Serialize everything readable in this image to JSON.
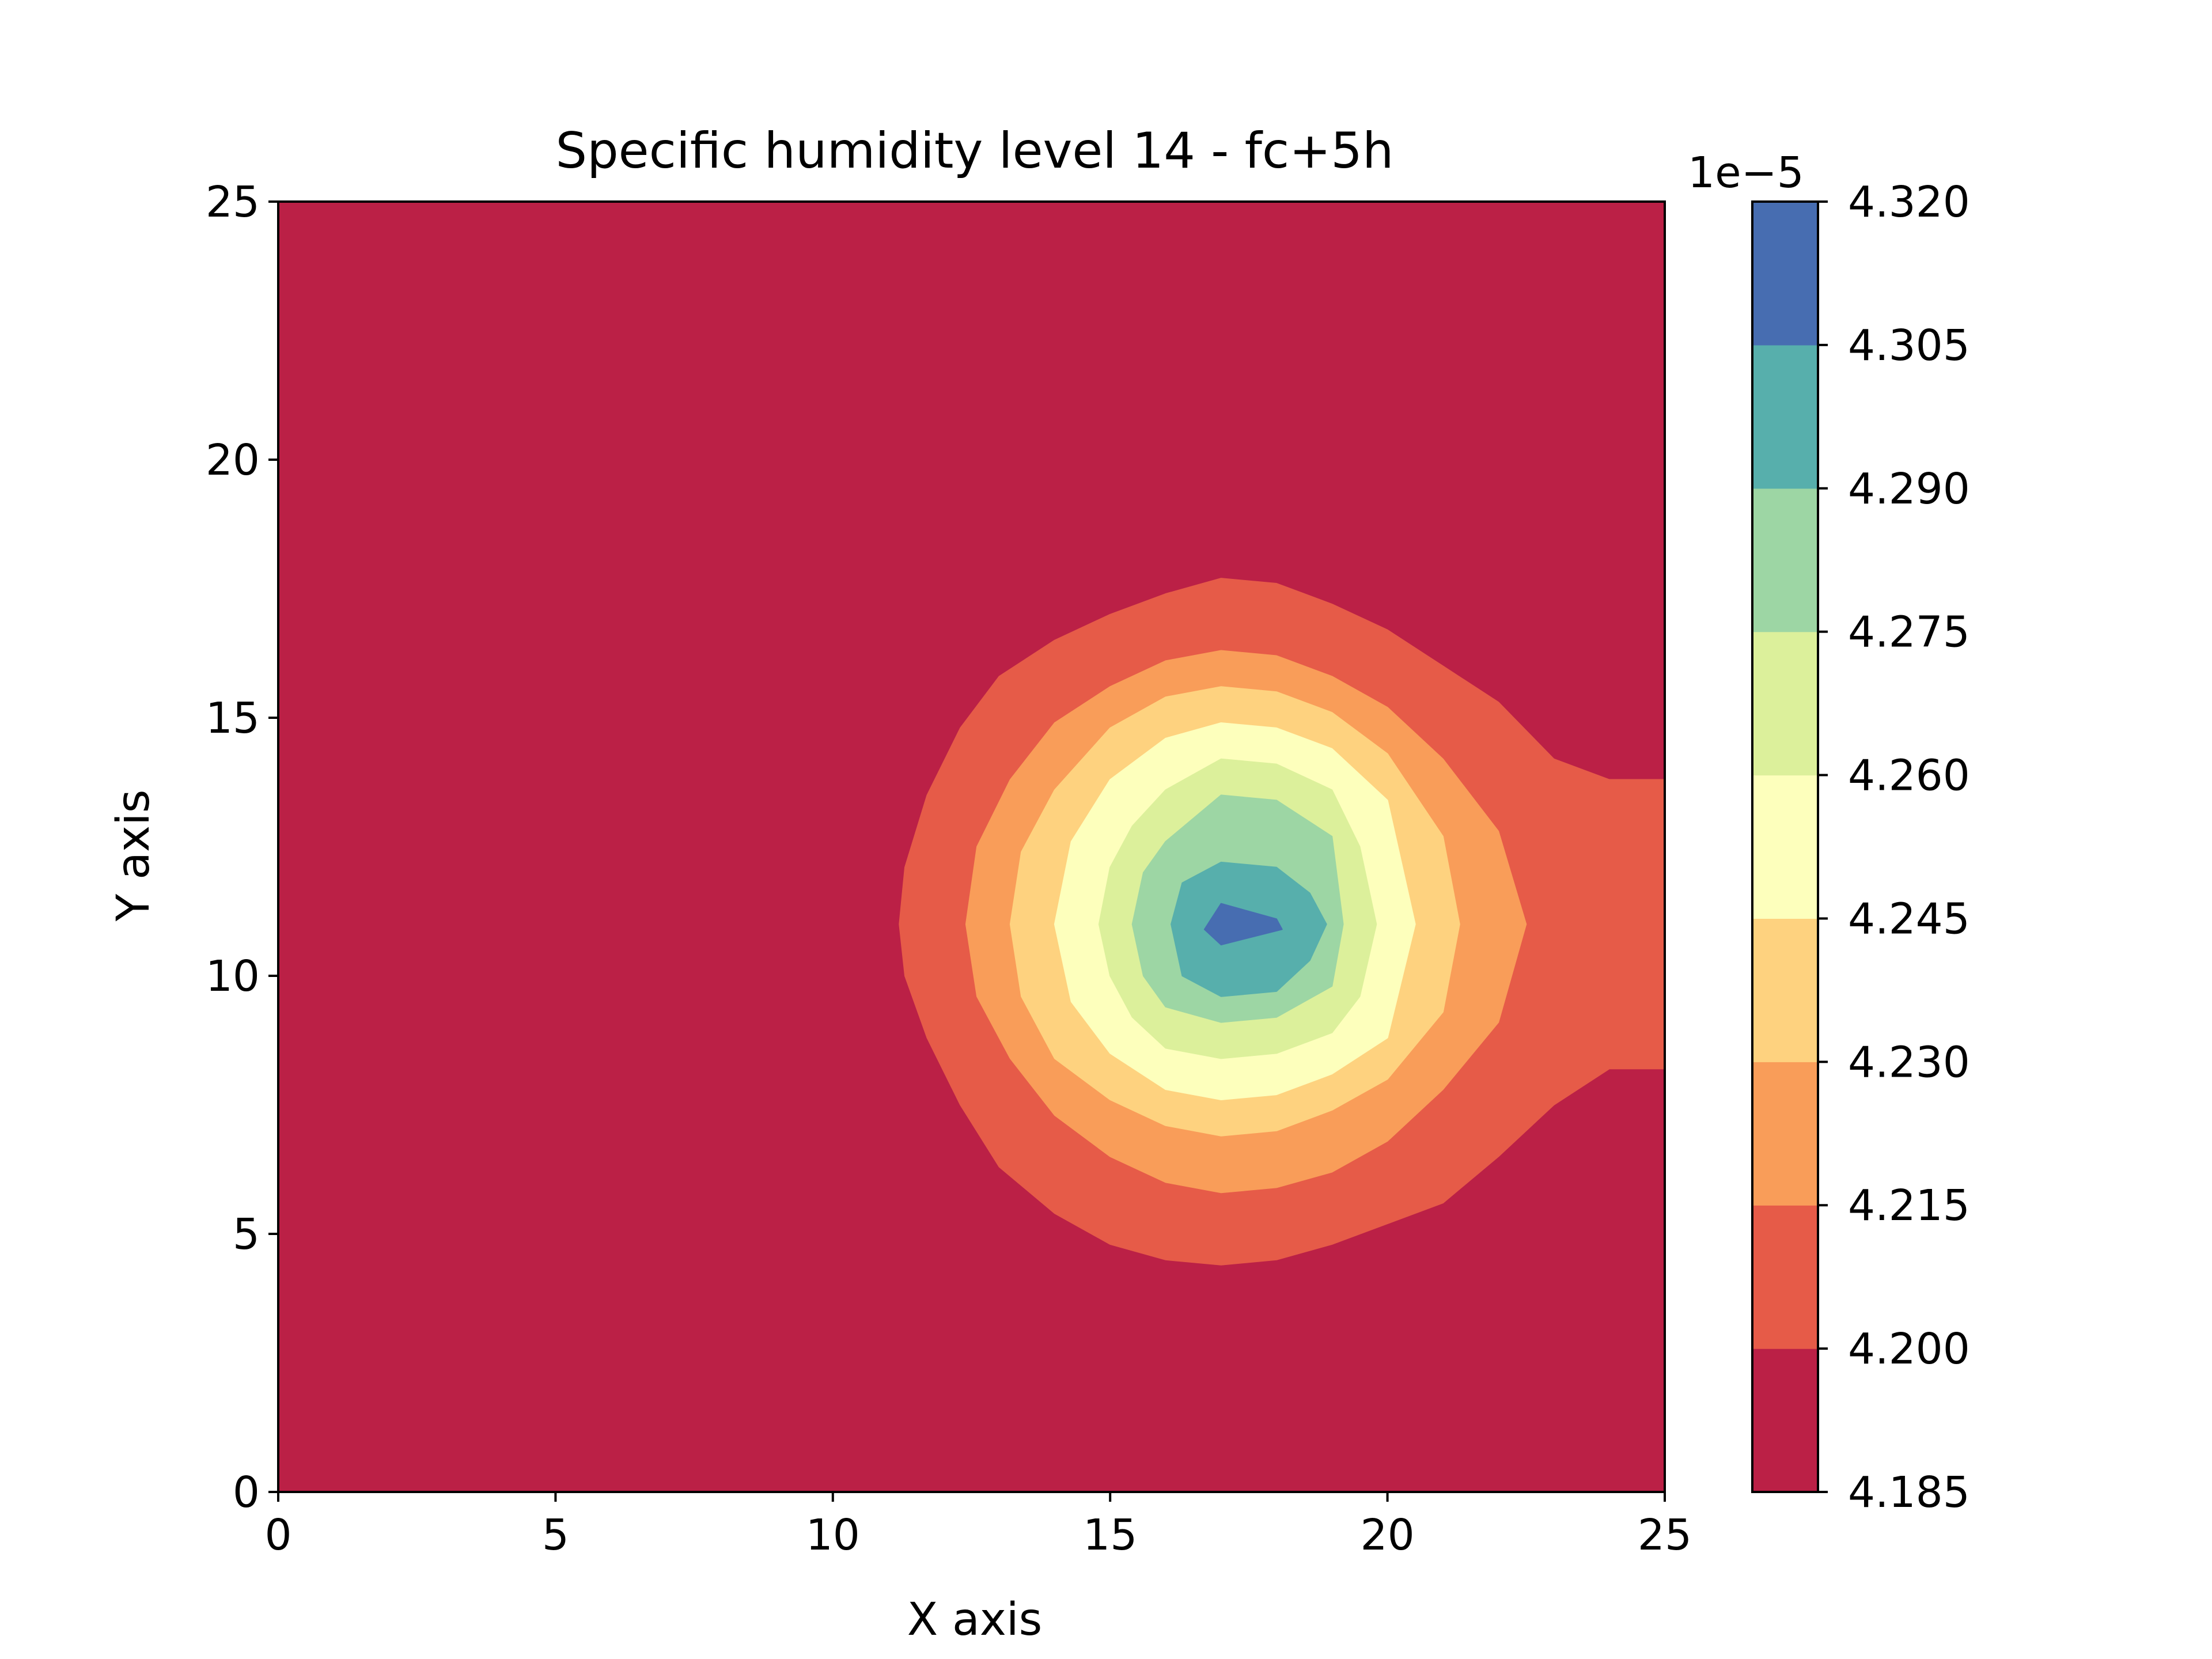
{
  "chart_data": {
    "type": "contour",
    "title": "Specific humidity level 14 - fc+5h",
    "xlabel": "X axis",
    "ylabel": "Y axis",
    "xlim": [
      0,
      25
    ],
    "ylim": [
      0,
      25
    ],
    "xticks": [
      "0",
      "5",
      "10",
      "15",
      "20",
      "25"
    ],
    "yticks": [
      "0",
      "5",
      "10",
      "15",
      "20",
      "25"
    ],
    "grid": false,
    "field": {
      "background_value": 4.19e-05,
      "peak_value": 4.315e-05,
      "peak_center": [
        17.4,
        11.0
      ],
      "contours": [
        {
          "level": 4.2e-05,
          "points": [
            [
              17,
              17.7
            ],
            [
              18,
              17.6
            ],
            [
              19,
              17.2
            ],
            [
              20,
              16.7
            ],
            [
              21,
              16.0
            ],
            [
              22,
              15.3
            ],
            [
              23,
              14.2
            ],
            [
              24,
              13.8
            ],
            [
              25,
              13.8
            ],
            [
              25,
              8.2
            ],
            [
              24,
              8.2
            ],
            [
              23,
              7.5
            ],
            [
              22,
              6.5
            ],
            [
              21,
              5.6
            ],
            [
              20,
              5.2
            ],
            [
              19,
              4.8
            ],
            [
              18,
              4.5
            ],
            [
              17,
              4.4
            ],
            [
              16,
              4.5
            ],
            [
              15,
              4.8
            ],
            [
              14,
              5.4
            ],
            [
              13,
              6.3
            ],
            [
              12.3,
              7.5
            ],
            [
              11.7,
              8.8
            ],
            [
              11.3,
              10.0
            ],
            [
              11.2,
              11.0
            ],
            [
              11.3,
              12.1
            ],
            [
              11.7,
              13.5
            ],
            [
              12.3,
              14.8
            ],
            [
              13,
              15.8
            ],
            [
              14,
              16.5
            ],
            [
              15,
              17.0
            ],
            [
              16,
              17.4
            ]
          ]
        },
        {
          "level": 4.215e-05,
          "points": [
            [
              17,
              16.3
            ],
            [
              18,
              16.2
            ],
            [
              19,
              15.8
            ],
            [
              20,
              15.2
            ],
            [
              21,
              14.2
            ],
            [
              22,
              12.8
            ],
            [
              22.5,
              11.0
            ],
            [
              22,
              9.1
            ],
            [
              21,
              7.8
            ],
            [
              20,
              6.8
            ],
            [
              19,
              6.2
            ],
            [
              18,
              5.9
            ],
            [
              17,
              5.8
            ],
            [
              16,
              6.0
            ],
            [
              15,
              6.5
            ],
            [
              14,
              7.3
            ],
            [
              13.2,
              8.4
            ],
            [
              12.6,
              9.6
            ],
            [
              12.4,
              11.0
            ],
            [
              12.6,
              12.5
            ],
            [
              13.2,
              13.8
            ],
            [
              14,
              14.9
            ],
            [
              15,
              15.6
            ],
            [
              16,
              16.1
            ]
          ]
        },
        {
          "level": 4.23e-05,
          "points": [
            [
              17,
              15.6
            ],
            [
              18,
              15.5
            ],
            [
              19,
              15.1
            ],
            [
              20,
              14.3
            ],
            [
              21,
              12.7
            ],
            [
              21.3,
              11.0
            ],
            [
              21,
              9.3
            ],
            [
              20,
              8.0
            ],
            [
              19,
              7.4
            ],
            [
              18,
              7.0
            ],
            [
              17,
              6.9
            ],
            [
              16,
              7.1
            ],
            [
              15,
              7.6
            ],
            [
              14,
              8.4
            ],
            [
              13.4,
              9.6
            ],
            [
              13.2,
              11.0
            ],
            [
              13.4,
              12.4
            ],
            [
              14,
              13.6
            ],
            [
              15,
              14.8
            ],
            [
              16,
              15.4
            ]
          ]
        },
        {
          "level": 4.245e-05,
          "points": [
            [
              17,
              14.9
            ],
            [
              18,
              14.8
            ],
            [
              19,
              14.4
            ],
            [
              20,
              13.4
            ],
            [
              20.5,
              11.0
            ],
            [
              20,
              8.8
            ],
            [
              19,
              8.1
            ],
            [
              18,
              7.7
            ],
            [
              17,
              7.6
            ],
            [
              16,
              7.8
            ],
            [
              15,
              8.5
            ],
            [
              14.3,
              9.5
            ],
            [
              14,
              11.0
            ],
            [
              14.3,
              12.6
            ],
            [
              15,
              13.8
            ],
            [
              16,
              14.6
            ]
          ]
        },
        {
          "level": 4.26e-05,
          "points": [
            [
              17,
              14.2
            ],
            [
              18,
              14.1
            ],
            [
              19,
              13.6
            ],
            [
              19.5,
              12.5
            ],
            [
              19.8,
              11.0
            ],
            [
              19.5,
              9.6
            ],
            [
              19,
              8.9
            ],
            [
              18,
              8.5
            ],
            [
              17,
              8.4
            ],
            [
              16,
              8.6
            ],
            [
              15.4,
              9.2
            ],
            [
              15,
              10.0
            ],
            [
              14.8,
              11.0
            ],
            [
              15,
              12.1
            ],
            [
              15.4,
              12.9
            ],
            [
              16,
              13.6
            ]
          ]
        },
        {
          "level": 4.275e-05,
          "points": [
            [
              17,
              13.5
            ],
            [
              18,
              13.4
            ],
            [
              19,
              12.7
            ],
            [
              19.2,
              11.0
            ],
            [
              19,
              9.8
            ],
            [
              18,
              9.2
            ],
            [
              17,
              9.1
            ],
            [
              16,
              9.4
            ],
            [
              15.6,
              10.0
            ],
            [
              15.4,
              11.0
            ],
            [
              15.6,
              12.0
            ],
            [
              16,
              12.6
            ]
          ]
        },
        {
          "level": 4.29e-05,
          "points": [
            [
              17,
              12.2
            ],
            [
              18,
              12.1
            ],
            [
              18.6,
              11.6
            ],
            [
              18.9,
              11.0
            ],
            [
              18.6,
              10.3
            ],
            [
              18,
              9.7
            ],
            [
              17,
              9.6
            ],
            [
              16.3,
              10.0
            ],
            [
              16.1,
              11.0
            ],
            [
              16.3,
              11.8
            ]
          ]
        },
        {
          "level": 4.305e-05,
          "points": [
            [
              17,
              11.4
            ],
            [
              18,
              11.1
            ],
            [
              18.1,
              10.9
            ],
            [
              17,
              10.6
            ],
            [
              16.7,
              10.9
            ]
          ]
        }
      ]
    },
    "colorbar": {
      "offset_text": "1e−5",
      "tick_labels": [
        "4.185",
        "4.200",
        "4.215",
        "4.230",
        "4.245",
        "4.260",
        "4.275",
        "4.290",
        "4.305",
        "4.320"
      ],
      "levels": [
        4.185,
        4.2,
        4.215,
        4.23,
        4.245,
        4.26,
        4.275,
        4.29,
        4.305,
        4.32
      ],
      "colors": [
        "#bb2046",
        "#e65b48",
        "#f99d59",
        "#fed27f",
        "#fdffbc",
        "#dcf09b",
        "#9dd6a4",
        "#57afac",
        "#476db1"
      ]
    }
  }
}
